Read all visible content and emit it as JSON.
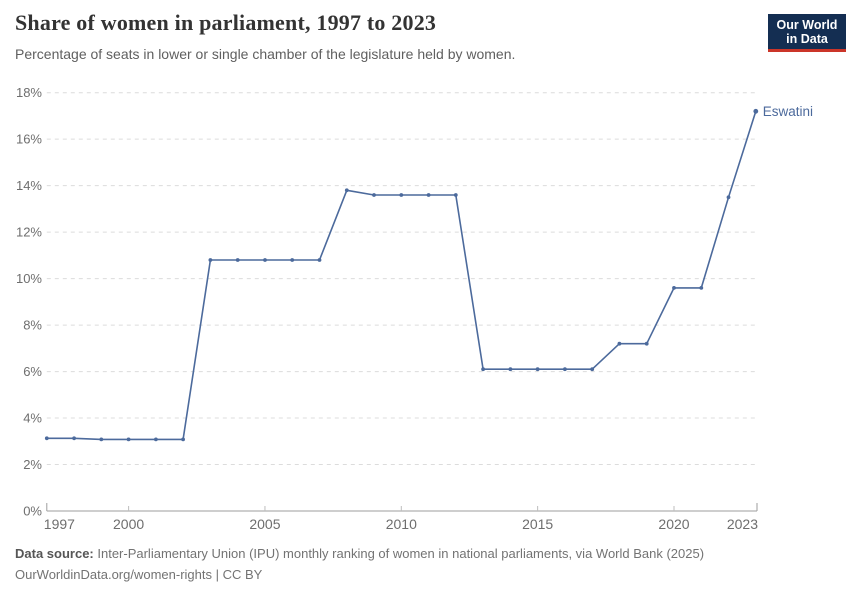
{
  "header": {
    "title": "Share of women in parliament, 1997 to 2023",
    "subtitle": "Percentage of seats in lower or single chamber of the legislature held by women.",
    "logo": {
      "line1": "Our World",
      "line2": "in Data"
    }
  },
  "chart_data": {
    "type": "line",
    "title": "Share of women in parliament, 1997 to 2023",
    "subtitle": "Percentage of seats in lower or single chamber of the legislature held by women.",
    "xlabel": "",
    "ylabel": "",
    "xlim": [
      1997,
      2023
    ],
    "ylim": [
      0,
      18
    ],
    "x": [
      1997,
      1998,
      1999,
      2000,
      2001,
      2002,
      2003,
      2004,
      2005,
      2006,
      2007,
      2008,
      2009,
      2010,
      2011,
      2012,
      2013,
      2014,
      2015,
      2016,
      2017,
      2018,
      2019,
      2020,
      2021,
      2022,
      2023
    ],
    "series": [
      {
        "name": "Eswatini",
        "color": "#4c6a9c",
        "values": [
          3.13,
          3.13,
          3.08,
          3.08,
          3.08,
          3.08,
          10.8,
          10.8,
          10.8,
          10.8,
          10.8,
          13.8,
          13.6,
          13.6,
          13.6,
          13.6,
          6.1,
          6.1,
          6.1,
          6.1,
          6.1,
          7.2,
          7.2,
          9.6,
          9.6,
          13.5,
          17.2
        ]
      }
    ],
    "x_ticks": [
      1997,
      2000,
      2005,
      2010,
      2015,
      2020,
      2023
    ],
    "y_ticks": [
      0,
      2,
      4,
      6,
      8,
      10,
      12,
      14,
      16,
      18
    ],
    "y_suffix": "%",
    "grid": "horizontal-dashed",
    "legend": "end-of-line-label",
    "end_label": "Eswatini"
  },
  "footer": {
    "source_label": "Data source:",
    "source_text": " Inter-Parliamentary Union (IPU) monthly ranking of women in national parliaments, via World Bank (2025)",
    "link_line": "OurWorldinData.org/women-rights | CC BY"
  },
  "colors": {
    "line": "#4c6a9c",
    "grid": "#dcdcdc",
    "axis": "#9e9e9e",
    "minor_tick": "#bdbdbd",
    "tick_label": "#6e6e6e",
    "title": "#333333",
    "subtitle": "#5f5f5f",
    "footer": "#737373",
    "logo_bg": "#142e52",
    "logo_accent": "#cb3529"
  }
}
